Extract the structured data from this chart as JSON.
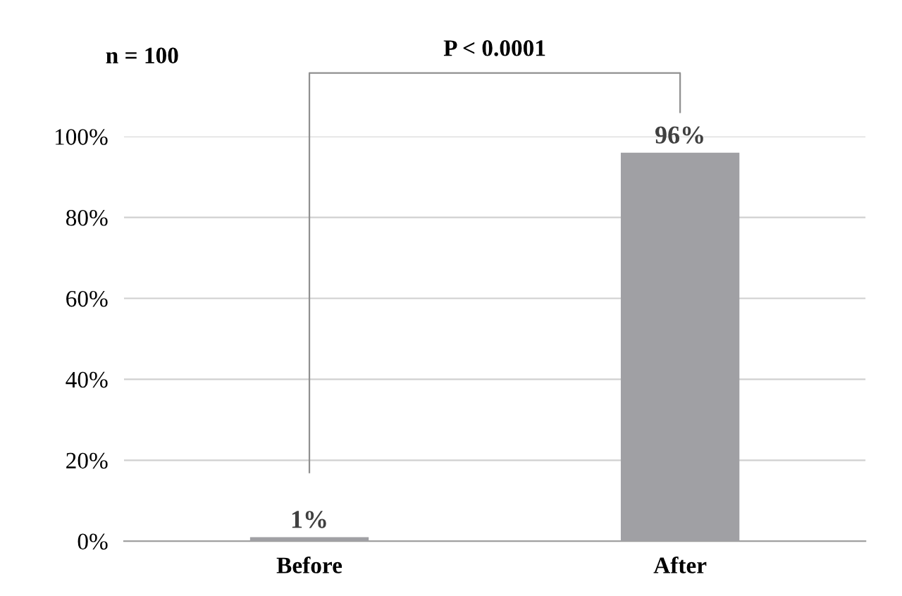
{
  "chart_data": {
    "type": "bar",
    "categories": [
      "Before",
      "After"
    ],
    "values": [
      1,
      96
    ],
    "color": "#a0a0a4",
    "value_labels": [
      "1%",
      "96%"
    ],
    "ylim": [
      0,
      100
    ],
    "yticks": [
      {
        "value": 0,
        "label": "0%"
      },
      {
        "value": 20,
        "label": "20%"
      },
      {
        "value": 40,
        "label": "40%"
      },
      {
        "value": 60,
        "label": "60%"
      },
      {
        "value": 80,
        "label": "80%"
      },
      {
        "value": 100,
        "label": "100%"
      }
    ],
    "grid": "y",
    "annotations": [
      "n = 100",
      "P < 0.0001"
    ]
  }
}
